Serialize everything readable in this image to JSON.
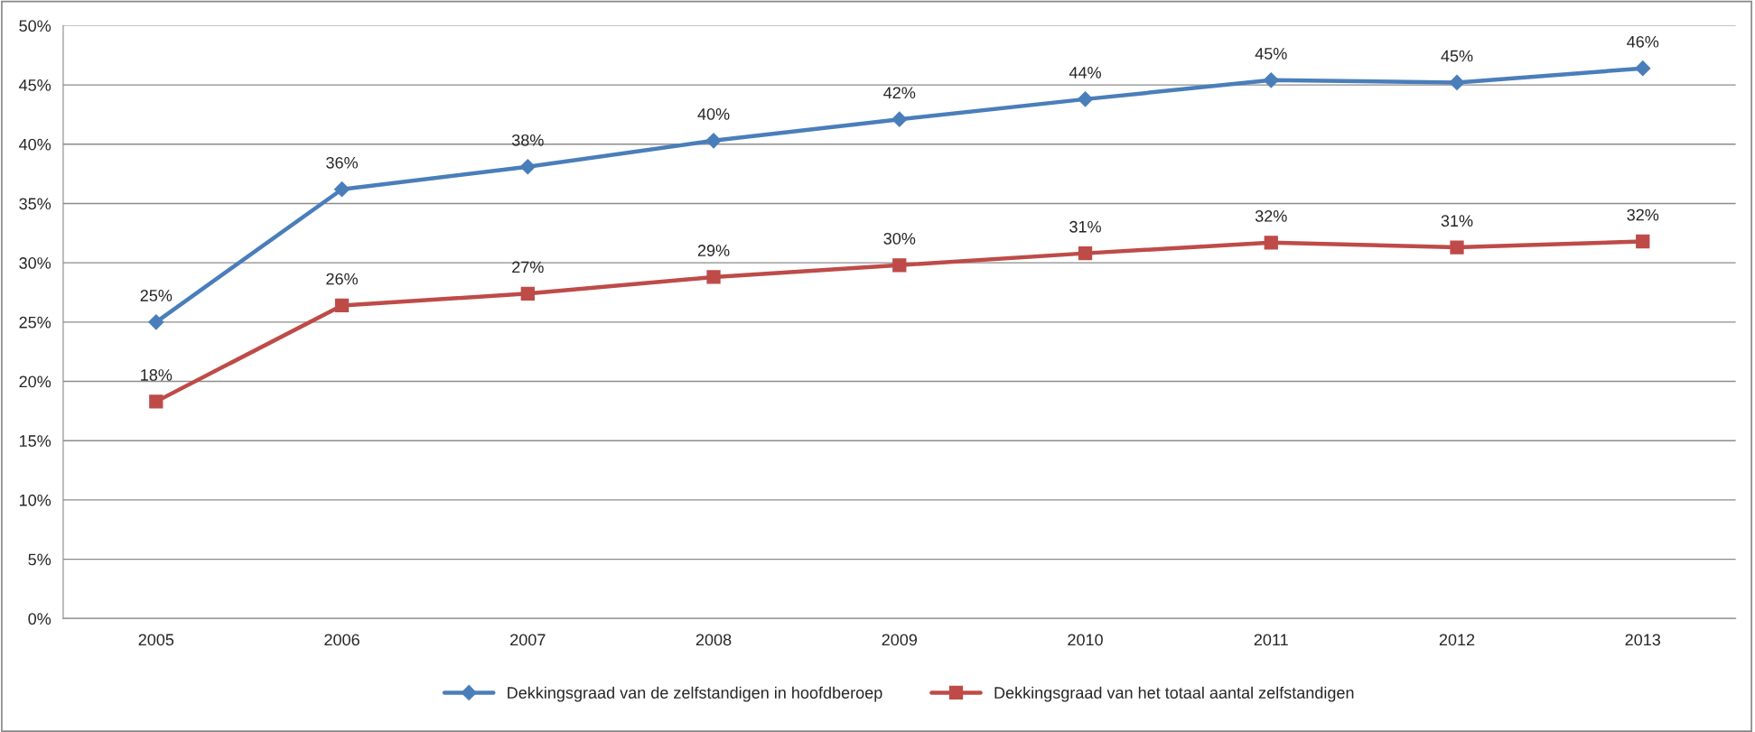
{
  "chart_data": {
    "type": "line",
    "categories": [
      "2005",
      "2006",
      "2007",
      "2008",
      "2009",
      "2010",
      "2011",
      "2012",
      "2013"
    ],
    "series": [
      {
        "name": "Dekkingsgraad van de zelfstandigen in hoofdberoep",
        "color": "#4a7ebb",
        "marker": "diamond",
        "values": [
          25.0,
          36.2,
          38.1,
          40.3,
          42.1,
          43.8,
          45.4,
          45.2,
          46.4
        ],
        "value_labels": [
          "25%",
          "36%",
          "38%",
          "40%",
          "42%",
          "44%",
          "45%",
          "45%",
          "46%"
        ]
      },
      {
        "name": "Dekkingsgraad van het totaal aantal zelfstandigen",
        "color": "#be4b48",
        "marker": "square",
        "values": [
          18.3,
          26.4,
          27.4,
          28.8,
          29.8,
          30.8,
          31.7,
          31.3,
          31.8
        ],
        "value_labels": [
          "18%",
          "26%",
          "27%",
          "29%",
          "30%",
          "31%",
          "32%",
          "31%",
          "32%"
        ]
      }
    ],
    "ylim": [
      0,
      50
    ],
    "yticks": [
      {
        "value": 0,
        "label": "0%"
      },
      {
        "value": 5,
        "label": "5%"
      },
      {
        "value": 10,
        "label": "10%"
      },
      {
        "value": 15,
        "label": "15%"
      },
      {
        "value": 20,
        "label": "20%"
      },
      {
        "value": 25,
        "label": "25%"
      },
      {
        "value": 30,
        "label": "30%"
      },
      {
        "value": 35,
        "label": "35%"
      },
      {
        "value": 40,
        "label": "40%"
      },
      {
        "value": 45,
        "label": "45%"
      },
      {
        "value": 50,
        "label": "50%"
      }
    ],
    "grid": "y",
    "legend": "bottom",
    "line_style": "solid"
  }
}
